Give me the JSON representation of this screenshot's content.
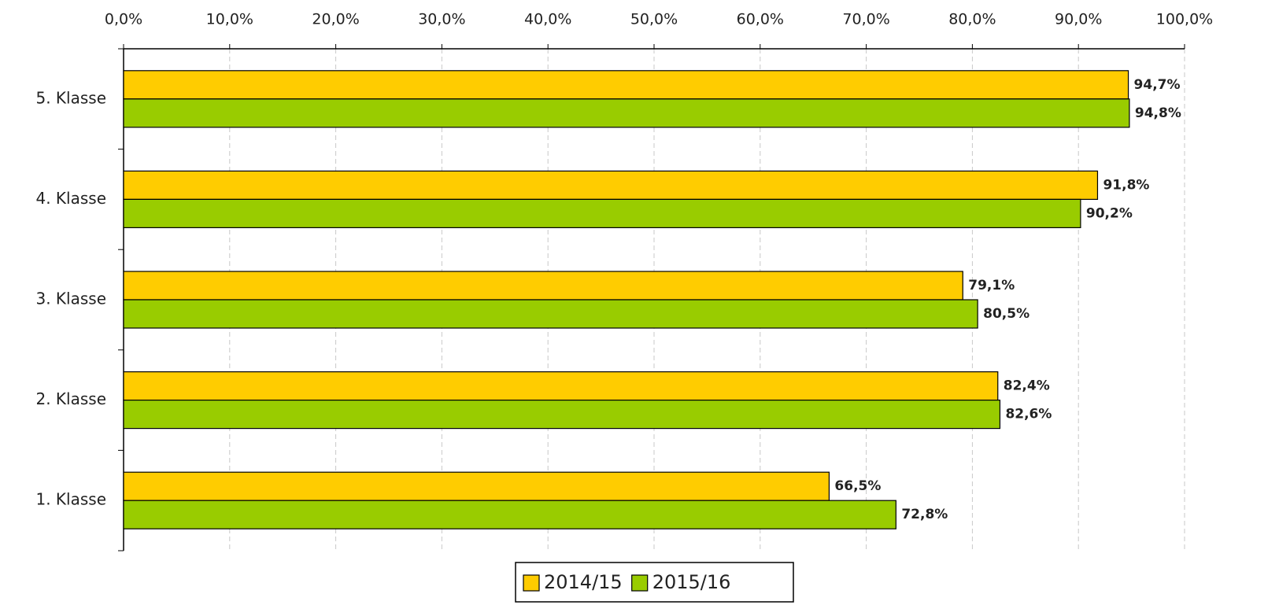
{
  "chart_data": {
    "type": "bar",
    "orientation": "horizontal",
    "categories": [
      "5. Klasse",
      "4. Klasse",
      "3. Klasse",
      "2. Klasse",
      "1. Klasse"
    ],
    "series": [
      {
        "name": "2014/15",
        "color": "#ffcc00",
        "values": [
          94.7,
          91.8,
          79.1,
          82.4,
          66.5
        ],
        "value_labels": [
          "94,7%",
          "91,8%",
          "79,1%",
          "82,4%",
          "66,5%"
        ]
      },
      {
        "name": "2015/16",
        "color": "#99cc00",
        "values": [
          94.8,
          90.2,
          80.5,
          82.6,
          72.8
        ],
        "value_labels": [
          "94,8%",
          "90,2%",
          "80,5%",
          "82,6%",
          "72,8%"
        ]
      }
    ],
    "xlim": [
      0,
      100
    ],
    "xticks": [
      {
        "value": 0,
        "label": "0,0%"
      },
      {
        "value": 10,
        "label": "10,0%"
      },
      {
        "value": 20,
        "label": "20,0%"
      },
      {
        "value": 30,
        "label": "30,0%"
      },
      {
        "value": 40,
        "label": "40,0%"
      },
      {
        "value": 50,
        "label": "50,0%"
      },
      {
        "value": 60,
        "label": "60,0%"
      },
      {
        "value": 70,
        "label": "70,0%"
      },
      {
        "value": 80,
        "label": "80,0%"
      },
      {
        "value": 90,
        "label": "90,0%"
      },
      {
        "value": 100,
        "label": "100,0%"
      }
    ],
    "grid": true,
    "legend": "bottom"
  }
}
